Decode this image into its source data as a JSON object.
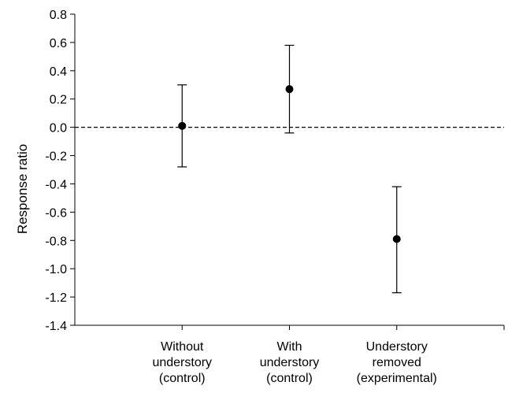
{
  "chart_data": {
    "type": "scatter",
    "title": "",
    "xlabel": "",
    "ylabel": "Response ratio",
    "ylim": [
      -1.4,
      0.8
    ],
    "yticks": [
      0.8,
      0.6,
      0.4,
      0.2,
      0.0,
      -0.2,
      -0.4,
      -0.6,
      -0.8,
      -1.0,
      -1.2,
      -1.4
    ],
    "ytick_labels": [
      "0.8",
      "0.6",
      "0.4",
      "0.2",
      "0.0",
      "-0.2",
      "-0.4",
      "-0.6",
      "-0.8",
      "-1.0",
      "-1.2",
      "-1.4"
    ],
    "categories": [
      [
        "Without",
        "understory",
        "(control)"
      ],
      [
        "With",
        "understory",
        "(control)"
      ],
      [
        "Understory",
        "removed",
        "(experimental)"
      ]
    ],
    "values": [
      0.01,
      0.27,
      -0.79
    ],
    "error_low": [
      -0.28,
      -0.04,
      -1.17
    ],
    "error_high": [
      0.3,
      0.58,
      -0.42
    ],
    "reference_line": 0.0,
    "reference_line_style": "dashed",
    "grid": false,
    "legend": "none"
  }
}
